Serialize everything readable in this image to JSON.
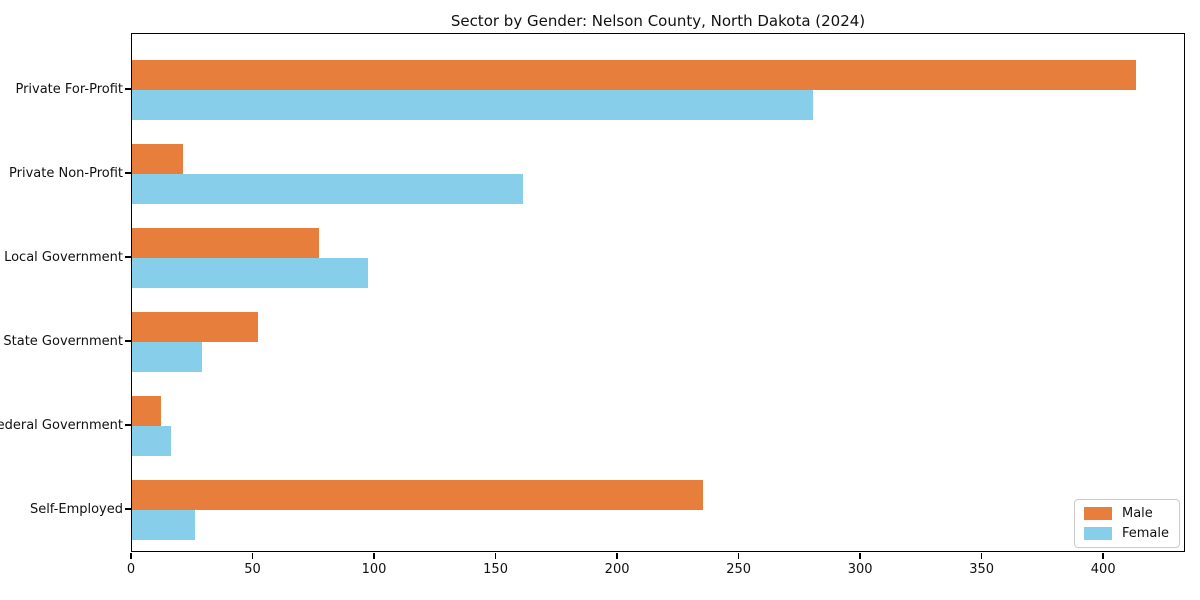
{
  "title": "Sector by Gender: Nelson County, North Dakota (2024)",
  "chart_data": {
    "type": "bar",
    "orientation": "horizontal",
    "title": "Sector by Gender: Nelson County, North Dakota (2024)",
    "xlabel": "",
    "ylabel": "",
    "categories": [
      "Private For-Profit",
      "Private Non-Profit",
      "Local Government",
      "State Government",
      "Federal Government",
      "Self-Employed"
    ],
    "series": [
      {
        "name": "Male",
        "color": "#E87E3C",
        "values": [
          413,
          21,
          77,
          52,
          12,
          235
        ]
      },
      {
        "name": "Female",
        "color": "#87CEEB",
        "values": [
          280,
          161,
          97,
          29,
          16,
          26
        ]
      }
    ],
    "xlim": [
      0,
      433.65
    ],
    "xticks": [
      0,
      50,
      100,
      150,
      200,
      250,
      300,
      350,
      400
    ],
    "grid": false,
    "legend_position": "lower right",
    "axis_color": "#000000",
    "background_color": "#ffffff"
  }
}
